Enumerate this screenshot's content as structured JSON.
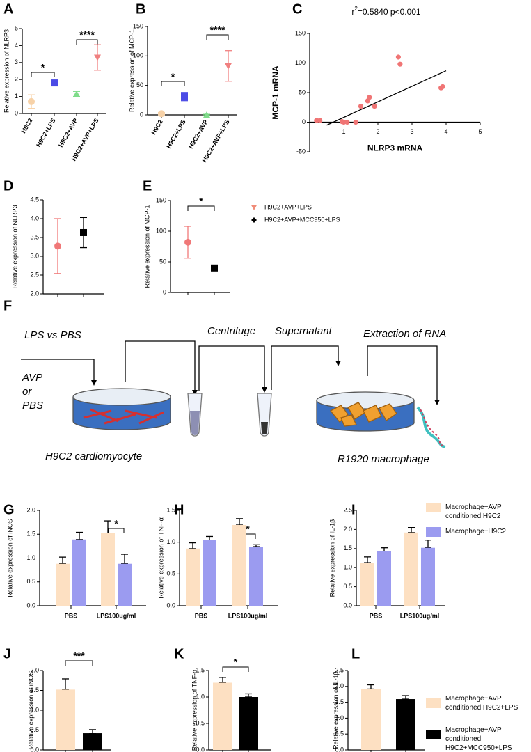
{
  "chart_data": [
    {
      "type": "dot",
      "panel": "A",
      "ylabel": "Relative expression of NLRP3",
      "categories": [
        "H9C2",
        "H9C2+LPS",
        "H9C2+AVP",
        "H9C2+AVP+LPS"
      ],
      "values": [
        0.7,
        1.8,
        1.15,
        3.3
      ],
      "errors": [
        0.4,
        0.05,
        0.15,
        0.75
      ],
      "colors": [
        "#f7d2a8",
        "#4b4be6",
        "#7fdc8a",
        "#f08080"
      ],
      "markers": [
        "circle",
        "square",
        "triangle",
        "triangle-down"
      ],
      "ylim": [
        0,
        5
      ],
      "yticks": [
        0,
        1,
        2,
        3,
        4,
        5
      ],
      "significance": [
        "*",
        "****"
      ]
    },
    {
      "type": "dot",
      "panel": "B",
      "ylabel": "Relative expression of MCP-1",
      "categories": [
        "H9C2",
        "H9C2+LPS",
        "H9C2+AVP",
        "H9C2+AVP+LPS"
      ],
      "values": [
        2,
        31,
        0,
        83
      ],
      "errors": [
        2,
        7,
        1,
        26
      ],
      "colors": [
        "#f7d2a8",
        "#4b4be6",
        "#7fdc8a",
        "#f08080"
      ],
      "markers": [
        "circle",
        "square",
        "triangle",
        "triangle-down"
      ],
      "ylim": [
        0,
        150
      ],
      "yticks": [
        0,
        50,
        100,
        150
      ],
      "significance": [
        "*",
        "****"
      ]
    },
    {
      "type": "scatter",
      "panel": "C",
      "annotation": {
        "base": "r",
        "sup": "2",
        "rest": "=0.5840 p<0.001"
      },
      "xlabel": "NLRP3 mRNA",
      "ylabel": "MCP-1 mRNA",
      "x": [
        0.2,
        0.3,
        0.95,
        1.0,
        1.1,
        1.35,
        1.5,
        1.7,
        1.75,
        1.9,
        2.6,
        2.65,
        3.85,
        3.9
      ],
      "y": [
        3,
        3,
        1,
        0,
        0,
        0,
        27,
        36,
        42,
        27,
        110,
        98,
        58,
        60
      ],
      "color": "#f07575",
      "fit_x": [
        0.5,
        4
      ],
      "fit_y": [
        -5,
        87
      ],
      "xlim": [
        0,
        5
      ],
      "xticks": [
        1,
        2,
        3,
        4,
        5
      ],
      "ylim": [
        -50,
        150
      ],
      "yticks": [
        -50,
        0,
        50,
        100,
        150
      ]
    },
    {
      "type": "dot",
      "panel": "D",
      "ylabel": "Relative expression of NLRP3",
      "categories": [
        null,
        null
      ],
      "values": [
        3.27,
        3.63
      ],
      "errors": [
        0.73,
        0.4
      ],
      "colors": [
        "#f07878",
        "#000000"
      ],
      "markers": [
        "circle",
        "square"
      ],
      "ylim": [
        2,
        4.5
      ],
      "yticks": [
        {
          "value": 2,
          "label": "2.0"
        },
        {
          "value": 2.5,
          "label": "2.5"
        },
        {
          "value": 3,
          "label": "3.0"
        },
        {
          "value": 3.5,
          "label": "3.5"
        },
        {
          "value": 4,
          "label": "4.0"
        },
        {
          "value": 4.5,
          "label": "4.5"
        }
      ]
    },
    {
      "type": "dot",
      "panel": "E",
      "ylabel": "Relative expression of MCP-1",
      "categories": [
        null,
        null
      ],
      "values": [
        82,
        40
      ],
      "errors": [
        26,
        4
      ],
      "colors": [
        "#f07878",
        "#000000"
      ],
      "markers": [
        "circle",
        "square"
      ],
      "ylim": [
        0,
        150
      ],
      "yticks": [
        0,
        50,
        100,
        150
      ],
      "significance": [
        "*"
      ],
      "legend": [
        {
          "name": "H9C2+AVP+LPS",
          "color": "#f08c78",
          "marker": "triangle-down"
        },
        {
          "name": "H9C2+AVP+MCC950+LPS",
          "color": "#000000",
          "marker": "diamond"
        }
      ]
    },
    {
      "type": "bar",
      "panel": "G",
      "ylabel": "Relative expression of iNOS",
      "categories": [
        "PBS",
        "LPS100ug/ml"
      ],
      "series": [
        {
          "color": "#fde0c2",
          "values": [
            0.88,
            1.52
          ],
          "errors": [
            0.14,
            0.26
          ]
        },
        {
          "color": "#9b9bf0",
          "values": [
            1.39,
            0.88
          ],
          "errors": [
            0.15,
            0.2
          ]
        }
      ],
      "ylim": [
        0,
        2
      ],
      "yticks": [
        {
          "value": 0,
          "label": "0.0"
        },
        {
          "value": 0.5,
          "label": "0.5"
        },
        {
          "value": 1,
          "label": "1.0"
        },
        {
          "value": 1.5,
          "label": "1.5"
        },
        {
          "value": 2,
          "label": "2.0"
        }
      ],
      "significance": [
        "*"
      ]
    },
    {
      "type": "bar",
      "panel": "H",
      "ylabel": "Relative expression of TNF-α",
      "categories": [
        "PBS",
        "LPS100ug/ml"
      ],
      "series": [
        {
          "color": "#fde0c2",
          "values": [
            0.9,
            1.27
          ],
          "errors": [
            0.09,
            0.1
          ]
        },
        {
          "color": "#9b9bf0",
          "values": [
            1.03,
            0.93
          ],
          "errors": [
            0.06,
            0.03
          ]
        }
      ],
      "ylim": [
        0,
        1.5
      ],
      "yticks": [
        {
          "value": 0,
          "label": "0.0"
        },
        {
          "value": 0.5,
          "label": "0.5"
        },
        {
          "value": 1,
          "label": "1.0"
        },
        {
          "value": 1.5,
          "label": "1.5"
        }
      ],
      "significance": [
        "*"
      ]
    },
    {
      "type": "bar",
      "panel": "I",
      "ylabel": "Relative expression of IL-1β",
      "categories": [
        "PBS",
        "LPS100ug/ml"
      ],
      "series": [
        {
          "name": "Macrophage+AVP conditioned H9C2",
          "color": "#fde0c2",
          "values": [
            1.13,
            1.92
          ],
          "errors": [
            0.15,
            0.13
          ]
        },
        {
          "name": "Macrophage+H9C2",
          "color": "#9b9bf0",
          "values": [
            1.43,
            1.52
          ],
          "errors": [
            0.09,
            0.2
          ]
        }
      ],
      "ylim": [
        0,
        2.5
      ],
      "yticks": [
        {
          "value": 0,
          "label": "0.0"
        },
        {
          "value": 0.5,
          "label": "0.5"
        },
        {
          "value": 1,
          "label": "1.0"
        },
        {
          "value": 1.5,
          "label": "1.5"
        },
        {
          "value": 2,
          "label": "2.0"
        },
        {
          "value": 2.5,
          "label": "2.5"
        }
      ]
    },
    {
      "type": "bar",
      "panel": "J",
      "ylabel": "Relative expression of iNOS",
      "categories": [
        null,
        null
      ],
      "values": [
        1.52,
        0.42
      ],
      "errors": [
        0.27,
        0.09
      ],
      "colors": [
        "#fde0c2",
        "#000000"
      ],
      "ylim": [
        0,
        2
      ],
      "yticks": [
        {
          "value": 0,
          "label": "0.0"
        },
        {
          "value": 0.5,
          "label": "0.5"
        },
        {
          "value": 1,
          "label": "1.0"
        },
        {
          "value": 1.5,
          "label": "1.5"
        },
        {
          "value": 2,
          "label": "2.0"
        }
      ],
      "significance": [
        "***"
      ]
    },
    {
      "type": "bar",
      "panel": "K",
      "ylabel": "Relative expression of TNF-α",
      "categories": [
        null,
        null
      ],
      "values": [
        1.27,
        1.0
      ],
      "errors": [
        0.1,
        0.06
      ],
      "colors": [
        "#fde0c2",
        "#000000"
      ],
      "ylim": [
        0,
        1.5
      ],
      "yticks": [
        {
          "value": 0,
          "label": "0.0"
        },
        {
          "value": 0.5,
          "label": "0.5"
        },
        {
          "value": 1,
          "label": "1.0"
        },
        {
          "value": 1.5,
          "label": "1.5"
        }
      ],
      "significance": [
        "*"
      ]
    },
    {
      "type": "bar",
      "panel": "L",
      "ylabel": "Relative expression of IL-1β",
      "categories": [
        null,
        null
      ],
      "values": [
        1.92,
        1.6
      ],
      "errors": [
        0.13,
        0.11
      ],
      "colors": [
        "#fde0c2",
        "#000000"
      ],
      "ylim": [
        0,
        2.5
      ],
      "yticks": [
        {
          "value": 0,
          "label": "0.0"
        },
        {
          "value": 0.5,
          "label": "0.5"
        },
        {
          "value": 1,
          "label": "1.0"
        },
        {
          "value": 1.5,
          "label": "1.5"
        },
        {
          "value": 2,
          "label": "2.0"
        },
        {
          "value": 2.5,
          "label": "2.5"
        }
      ],
      "legend": [
        {
          "name": "Macrophage+AVP conditioned H9C2+LPS",
          "color": "#fde0c2"
        },
        {
          "name": "Macrophage+AVP conditioned H9C2+MCC950+LPS",
          "color": "#000000"
        }
      ]
    }
  ],
  "diagram": {
    "panel": "F",
    "steps": [
      "LPS vs PBS",
      "Centrifuge",
      "Supernatant",
      "Extraction of RNA"
    ],
    "treatment": [
      "AVP",
      "or",
      "PBS"
    ],
    "cells": [
      "H9C2 cardiomyocyte",
      "R1920 macrophage"
    ]
  }
}
